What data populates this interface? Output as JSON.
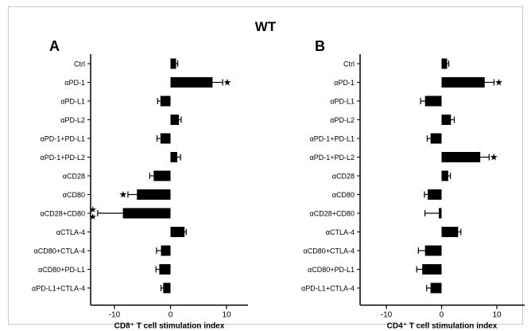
{
  "figure_title": "WT",
  "chart_data": [
    {
      "type": "bar",
      "orientation": "horizontal",
      "panel": "A",
      "categories": [
        "Ctrl",
        "αPD-1",
        "αPD-L1",
        "αPD-L2",
        "αPD-1+PD-L1",
        "αPD-1+PD-L2",
        "αCD28",
        "αCD80",
        "αCD28+CD80",
        "αCTLA-4",
        "αCD80+CTLA-4",
        "αCD80+PD-L1",
        "αPD-L1+CTLA-4"
      ],
      "values": [
        1.0,
        7.5,
        -1.8,
        1.5,
        -1.8,
        1.2,
        -3.0,
        -6.0,
        -8.5,
        2.5,
        -1.7,
        -2.0,
        -1.3
      ],
      "errors": [
        0.3,
        1.8,
        0.5,
        0.4,
        0.6,
        0.6,
        0.7,
        1.6,
        4.5,
        0.3,
        0.8,
        0.6,
        0.4
      ],
      "significance": [
        "",
        "*",
        "",
        "",
        "",
        "",
        "",
        "*",
        "**",
        "",
        "",
        "",
        ""
      ],
      "xlabel": "CD8⁺ T cell stimulation index",
      "xticks": [
        "-10",
        "0",
        "10"
      ],
      "xlim": [
        -14,
        15
      ],
      "color": "#000000"
    },
    {
      "type": "bar",
      "orientation": "horizontal",
      "panel": "B",
      "categories": [
        "Ctrl",
        "αPD-1",
        "αPD-L1",
        "αPD-L2",
        "αPD-1+PD-L1",
        "αPD-1+PD-L2",
        "αCD28",
        "αCD80",
        "αCD28+CD80",
        "αCTLA-4",
        "αCD80+CTLA-4",
        "αCD80+PD-L1",
        "αPD-L1+CTLA-4"
      ],
      "values": [
        1.0,
        7.8,
        -3.0,
        1.7,
        -2.0,
        7.0,
        1.2,
        -2.5,
        -0.5,
        3.0,
        -3.0,
        -3.5,
        -2.0
      ],
      "errors": [
        0.3,
        1.7,
        0.8,
        0.6,
        0.6,
        1.6,
        0.4,
        0.6,
        2.5,
        0.5,
        1.2,
        1.0,
        0.7
      ],
      "significance": [
        "",
        "*",
        "",
        "",
        "",
        "*",
        "",
        "",
        "",
        "",
        "",
        "",
        ""
      ],
      "xlabel": "CD4⁺ T cell stimulation index",
      "xticks": [
        "-10",
        "0",
        "10"
      ],
      "xlim": [
        -14,
        15
      ],
      "color": "#000000"
    }
  ]
}
